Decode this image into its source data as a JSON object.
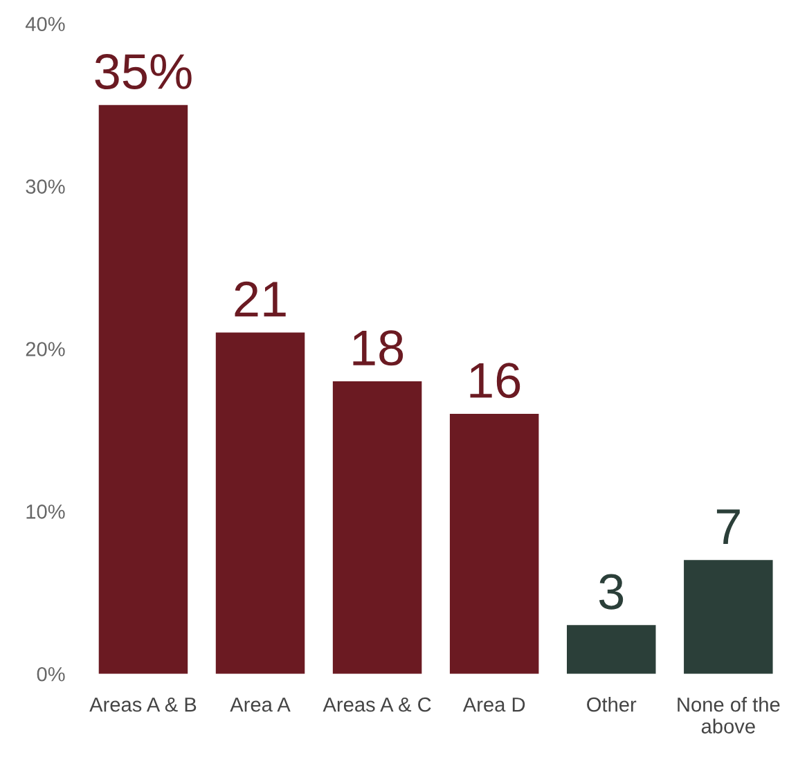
{
  "chart_data": {
    "type": "bar",
    "categories": [
      "Areas A & B",
      "Area A",
      "Areas A & C",
      "Area D",
      "Other",
      "None of the\nabove"
    ],
    "values": [
      35,
      21,
      18,
      16,
      3,
      7
    ],
    "colors": [
      "#6b1a22",
      "#6b1a22",
      "#6b1a22",
      "#6b1a22",
      "#2b3f39",
      "#2b3f39"
    ],
    "value_labels": [
      "35%",
      "21",
      "18",
      "16",
      "3",
      "7"
    ],
    "ylim": [
      0,
      40
    ],
    "yticks": [
      {
        "value": 0,
        "label": "0%"
      },
      {
        "value": 10,
        "label": "10%"
      },
      {
        "value": 20,
        "label": "20%"
      },
      {
        "value": 30,
        "label": "30%"
      },
      {
        "value": 40,
        "label": "40%"
      }
    ],
    "grid": false,
    "legend": false
  }
}
